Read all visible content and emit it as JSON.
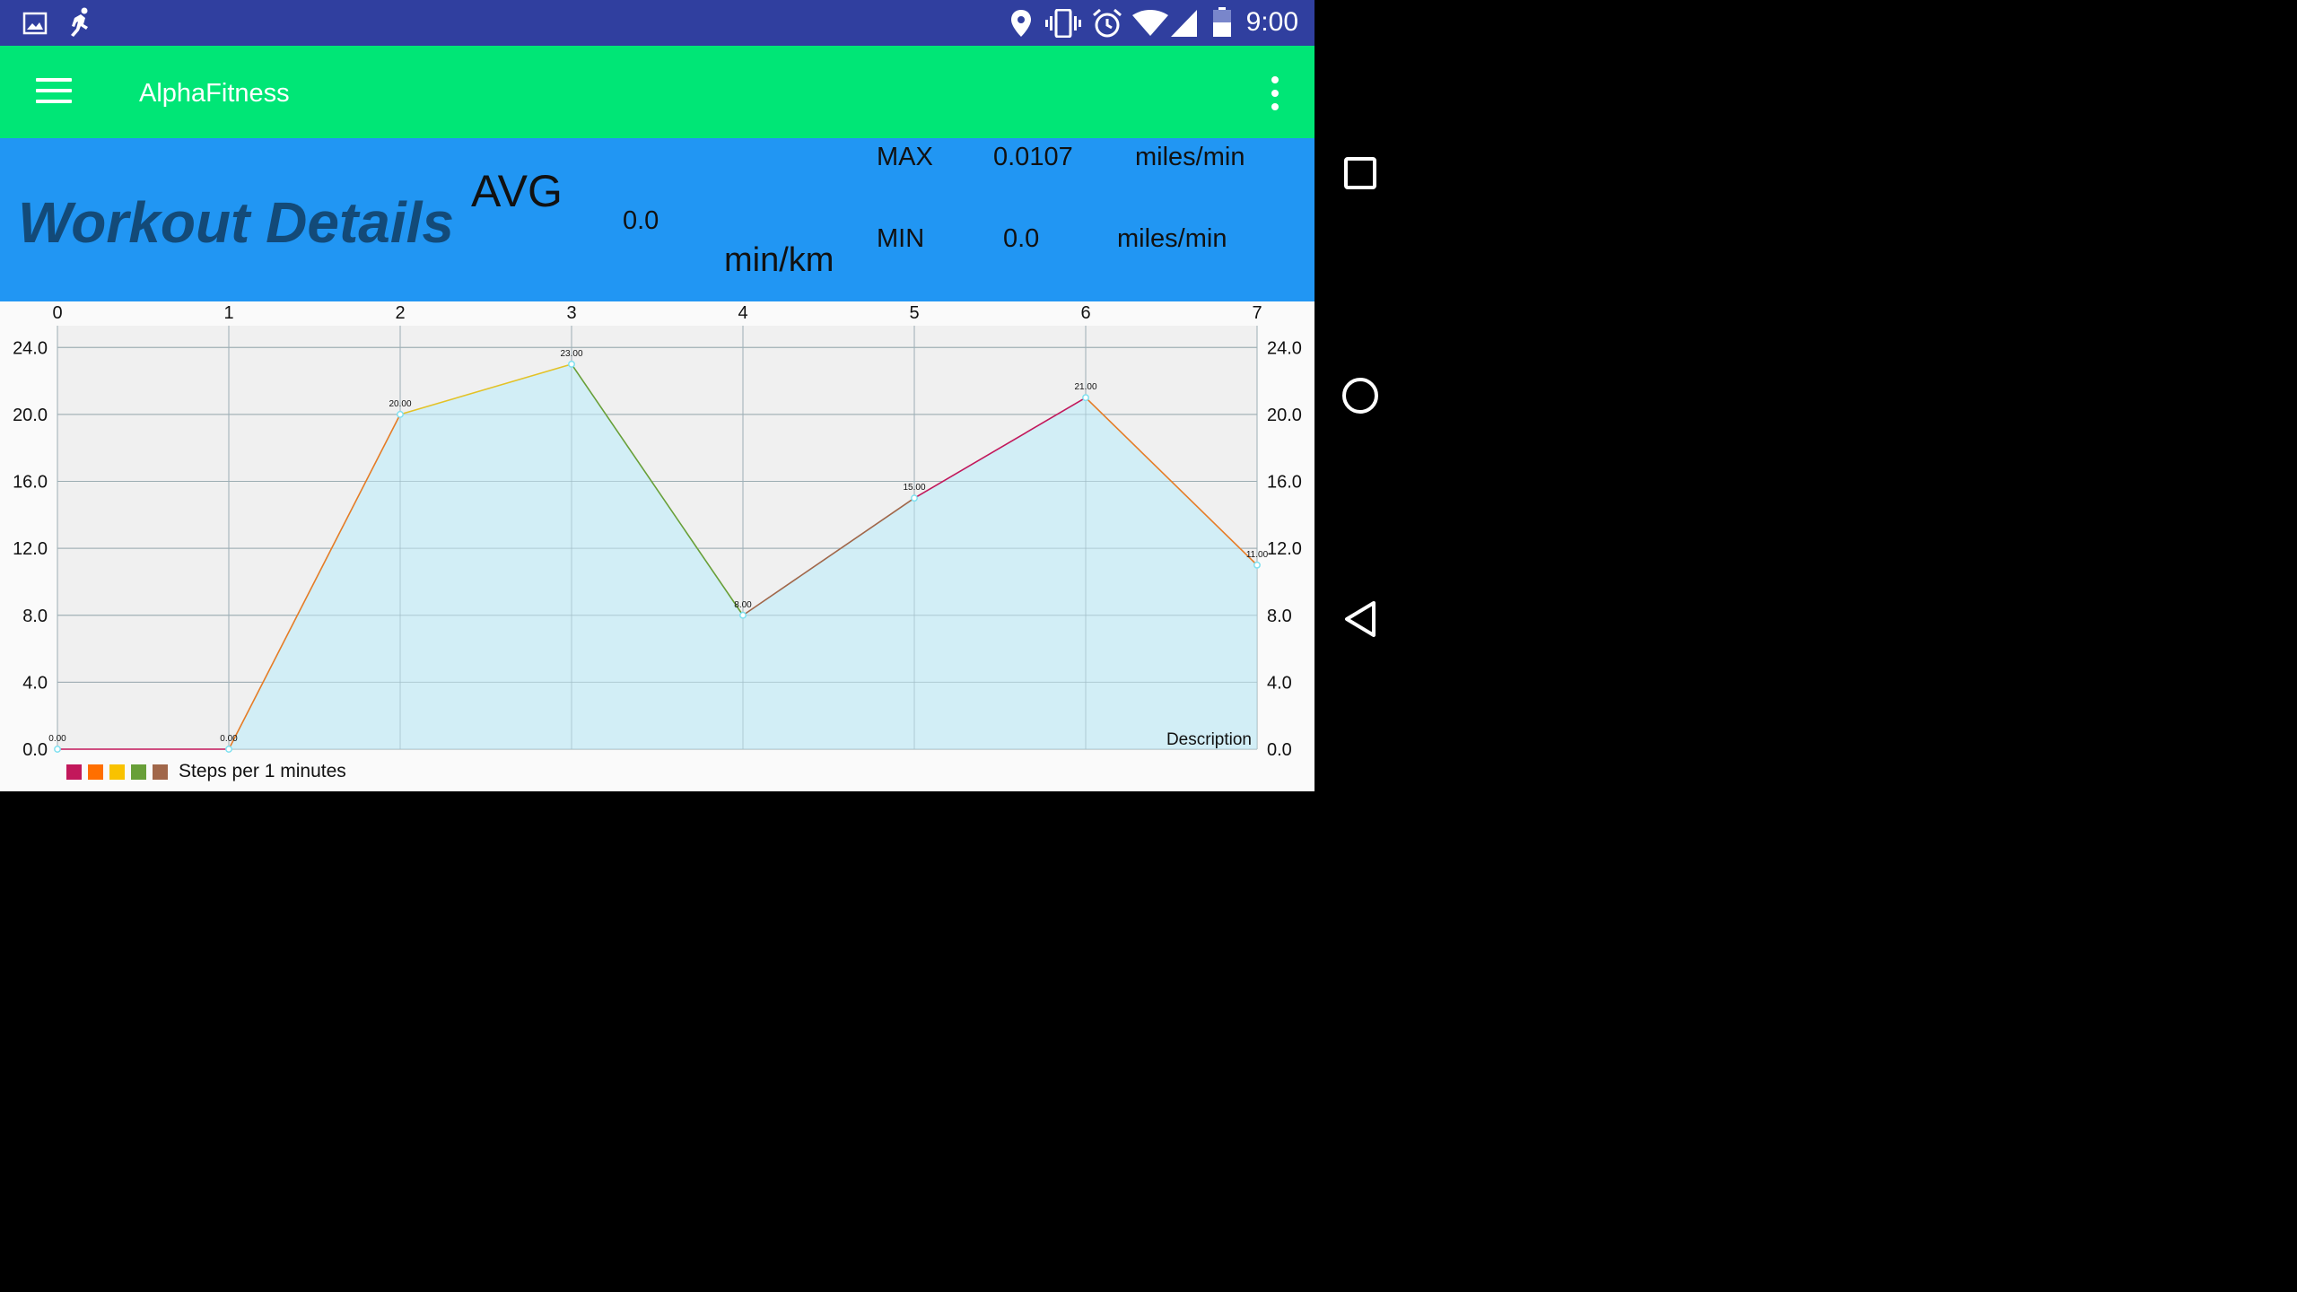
{
  "status_bar": {
    "time": "9:00",
    "icons": [
      "image-icon",
      "running-icon",
      "location-icon",
      "vibrate-icon",
      "alarm-icon",
      "wifi-icon",
      "signal-icon",
      "battery-icon"
    ]
  },
  "app_bar": {
    "title": "AlphaFitness",
    "menu_icon": "hamburger-menu-icon",
    "overflow_icon": "more-vert-icon"
  },
  "workout": {
    "title": "Workout Details",
    "avg_label": "AVG",
    "avg_value": "0.0",
    "avg_unit": "min/km",
    "max_label": "MAX",
    "max_value": "0.0107",
    "max_unit": "miles/min",
    "min_label": "MIN",
    "min_value": "0.0",
    "min_unit": "miles/min"
  },
  "chart_data": {
    "type": "line",
    "x": [
      0,
      1,
      2,
      3,
      4,
      5,
      6,
      7
    ],
    "series": [
      {
        "name": "Steps per 1 minutes",
        "values": [
          0,
          0,
          20,
          23,
          8,
          15,
          21,
          11
        ]
      }
    ],
    "value_labels": [
      "0.00",
      "0.00",
      "20.00",
      "23.00",
      "8.00",
      "15.00",
      "21.00",
      "11.00"
    ],
    "x_ticks": [
      "0",
      "1",
      "2",
      "3",
      "4",
      "5",
      "6",
      "7"
    ],
    "y_ticks": [
      "0.0",
      "4.0",
      "8.0",
      "12.0",
      "16.0",
      "20.0",
      "24.0"
    ],
    "y_tick_values": [
      0,
      4,
      8,
      12,
      16,
      20,
      24
    ],
    "ylim": [
      0,
      25.3
    ],
    "xlim": [
      0,
      7
    ],
    "x_axis_position": "top",
    "y_axis_position": "both",
    "grid": true,
    "filled": true,
    "fill_color": "#d0edf5",
    "plot_background": "#f0f0f0",
    "segment_colors": [
      "#c2185b",
      "#e57c26",
      "#e3c227",
      "#689f38",
      "#a1674a",
      "#c2185b",
      "#e57c26"
    ],
    "point_color": "#7fe0f0",
    "description": "Description",
    "legend": {
      "label": "Steps per 1 minutes",
      "colors": [
        "#c2185b",
        "#ff6f00",
        "#f9c200",
        "#689f38",
        "#a1674a"
      ],
      "position": "bottom-left"
    }
  }
}
